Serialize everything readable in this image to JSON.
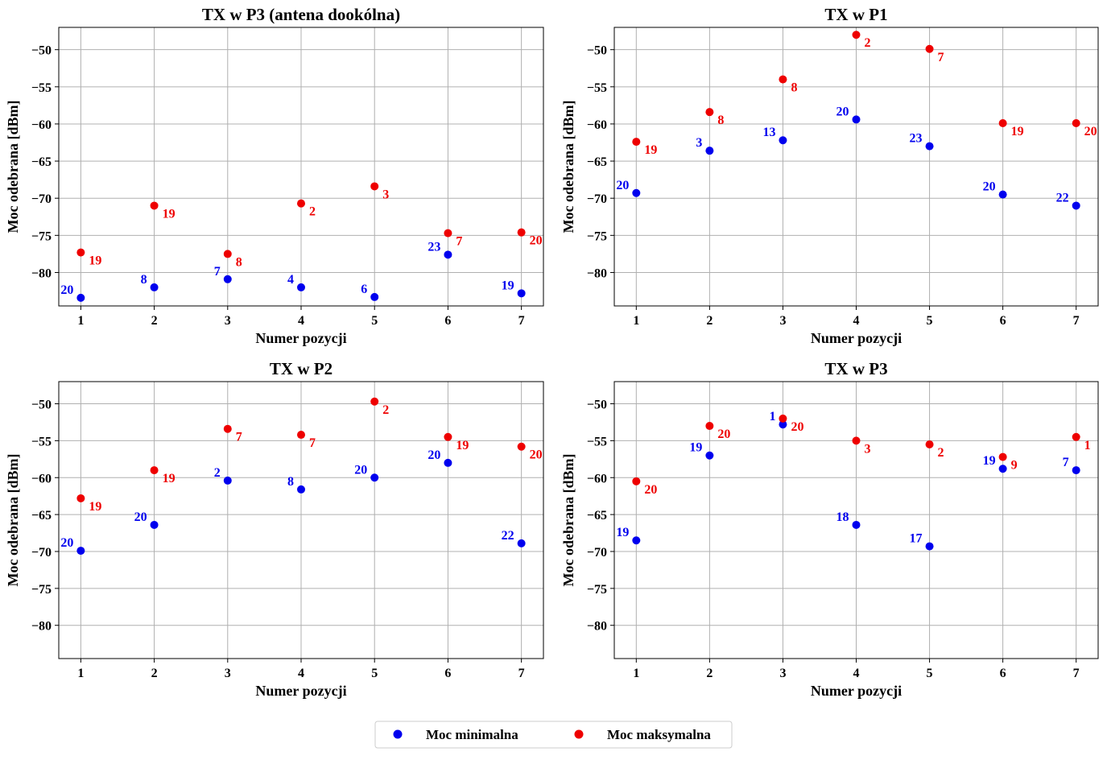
{
  "colors": {
    "min": "#0000ee",
    "max": "#ee0000"
  },
  "legend": {
    "placement": "bottom-center",
    "items": [
      {
        "label": "Moc minimalna",
        "color": "#0000ee"
      },
      {
        "label": "Moc maksymalna",
        "color": "#ee0000"
      }
    ]
  },
  "chart_data": [
    {
      "type": "scatter",
      "title": "TX w P3 (antena dookólna)",
      "xlabel": "Numer pozycji",
      "ylabel": "Moc odebrana [dBm]",
      "x": [
        1,
        2,
        3,
        4,
        5,
        6,
        7
      ],
      "xlim": [
        0.7,
        7.3
      ],
      "ylim": [
        -84.5,
        -47
      ],
      "xticks": [
        1,
        2,
        3,
        4,
        5,
        6,
        7
      ],
      "yticks": [
        -50,
        -55,
        -60,
        -65,
        -70,
        -75,
        -80
      ],
      "grid": true,
      "series": [
        {
          "name": "Moc minimalna",
          "color": "#0000ee",
          "values": [
            -83.4,
            -82.0,
            -80.9,
            -82.0,
            -83.3,
            -77.6,
            -82.8
          ],
          "labels": [
            "20",
            "8",
            "7",
            "4",
            "6",
            "23",
            "19"
          ]
        },
        {
          "name": "Moc maksymalna",
          "color": "#ee0000",
          "values": [
            -77.3,
            -71.0,
            -77.5,
            -70.7,
            -68.4,
            -74.7,
            -74.6
          ],
          "labels": [
            "19",
            "19",
            "8",
            "2",
            "3",
            "7",
            "20"
          ]
        }
      ]
    },
    {
      "type": "scatter",
      "title": "TX w P1",
      "xlabel": "Numer pozycji",
      "ylabel": "Moc odebrana [dBm]",
      "x": [
        1,
        2,
        3,
        4,
        5,
        6,
        7
      ],
      "xlim": [
        0.7,
        7.3
      ],
      "ylim": [
        -84.5,
        -47
      ],
      "xticks": [
        1,
        2,
        3,
        4,
        5,
        6,
        7
      ],
      "yticks": [
        -50,
        -55,
        -60,
        -65,
        -70,
        -75,
        -80
      ],
      "grid": true,
      "series": [
        {
          "name": "Moc minimalna",
          "color": "#0000ee",
          "values": [
            -69.3,
            -63.6,
            -62.2,
            -59.4,
            -63.0,
            -69.5,
            -71.0
          ],
          "labels": [
            "20",
            "3",
            "13",
            "20",
            "23",
            "20",
            "22"
          ]
        },
        {
          "name": "Moc maksymalna",
          "color": "#ee0000",
          "values": [
            -62.4,
            -58.4,
            -54.0,
            -48.0,
            -49.9,
            -59.9,
            -59.9
          ],
          "labels": [
            "19",
            "8",
            "8",
            "2",
            "7",
            "19",
            "20"
          ]
        }
      ]
    },
    {
      "type": "scatter",
      "title": "TX w P2",
      "xlabel": "Numer pozycji",
      "ylabel": "Moc odebrana [dBm]",
      "x": [
        1,
        2,
        3,
        4,
        5,
        6,
        7
      ],
      "xlim": [
        0.7,
        7.3
      ],
      "ylim": [
        -84.5,
        -47
      ],
      "xticks": [
        1,
        2,
        3,
        4,
        5,
        6,
        7
      ],
      "yticks": [
        -50,
        -55,
        -60,
        -65,
        -70,
        -75,
        -80
      ],
      "grid": true,
      "series": [
        {
          "name": "Moc minimalna",
          "color": "#0000ee",
          "values": [
            -69.9,
            -66.4,
            -60.4,
            -61.6,
            -60.0,
            -58.0,
            -68.9
          ],
          "labels": [
            "20",
            "20",
            "2",
            "8",
            "20",
            "20",
            "22"
          ]
        },
        {
          "name": "Moc maksymalna",
          "color": "#ee0000",
          "values": [
            -62.8,
            -59.0,
            -53.4,
            -54.2,
            -49.7,
            -54.5,
            -55.8
          ],
          "labels": [
            "19",
            "19",
            "7",
            "7",
            "2",
            "19",
            "20"
          ]
        }
      ]
    },
    {
      "type": "scatter",
      "title": "TX w P3",
      "xlabel": "Numer pozycji",
      "ylabel": "Moc odebrana [dBm]",
      "x": [
        1,
        2,
        3,
        4,
        5,
        6,
        7
      ],
      "xlim": [
        0.7,
        7.3
      ],
      "ylim": [
        -84.5,
        -47
      ],
      "xticks": [
        1,
        2,
        3,
        4,
        5,
        6,
        7
      ],
      "yticks": [
        -50,
        -55,
        -60,
        -65,
        -70,
        -75,
        -80
      ],
      "grid": true,
      "series": [
        {
          "name": "Moc minimalna",
          "color": "#0000ee",
          "values": [
            -68.5,
            -57.0,
            -52.8,
            -66.4,
            -69.3,
            -58.8,
            -59.0
          ],
          "labels": [
            "19",
            "19",
            "1",
            "18",
            "17",
            "19",
            "7"
          ]
        },
        {
          "name": "Moc maksymalna",
          "color": "#ee0000",
          "values": [
            -60.5,
            -53.0,
            -52.0,
            -55.0,
            -55.5,
            -57.2,
            -54.5
          ],
          "labels": [
            "20",
            "20",
            "20",
            "3",
            "2",
            "9",
            "1"
          ]
        }
      ]
    }
  ]
}
